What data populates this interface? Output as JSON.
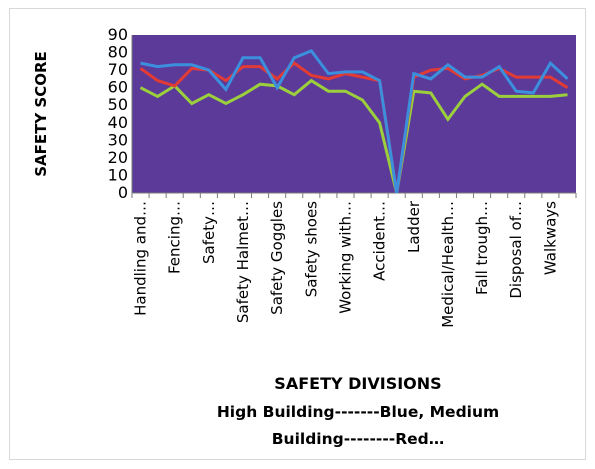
{
  "chart_data": {
    "type": "line",
    "ylabel": "SAFETY SCORE",
    "xlabel": "SAFETY DIVISIONS",
    "caption_lines": [
      "High Building-------Blue,  Medium",
      "Building--------Red…"
    ],
    "ylim": [
      0,
      90
    ],
    "yticks": [
      0,
      10,
      20,
      30,
      40,
      50,
      60,
      70,
      80,
      90
    ],
    "grid": false,
    "legend": "none",
    "plot_background": "#5b3a9a",
    "tick_labels_x": [
      "Handling and…",
      "Fencing…",
      "Safety…",
      "Safety  Halmet…",
      "Safety Goggles",
      "Safety shoes",
      "Working with…",
      "Accident…",
      "Ladder",
      "Medical/Health…",
      "Fall trough…",
      "Disposal of…",
      "Walkways"
    ],
    "x": [
      1,
      2,
      3,
      4,
      5,
      6,
      7,
      8,
      9,
      10,
      11,
      12,
      13,
      14,
      15,
      16,
      17,
      18,
      19,
      20,
      21,
      22,
      23,
      24,
      25,
      26
    ],
    "series": [
      {
        "color": "#3c8fdc",
        "values": [
          74,
          72,
          73,
          73,
          70,
          59,
          77,
          77,
          60,
          77,
          81,
          68,
          69,
          69,
          64,
          0,
          68,
          65,
          73,
          66,
          66,
          72,
          58,
          57,
          74,
          65
        ]
      },
      {
        "color": "#e23b35",
        "values": [
          71,
          64,
          61,
          71,
          70,
          64,
          72,
          72,
          65,
          74,
          67,
          65,
          68,
          66,
          64,
          0,
          66,
          70,
          71,
          65,
          67,
          71,
          66,
          66,
          66,
          60
        ]
      },
      {
        "color": "#9ccf3c",
        "values": [
          60,
          55,
          61,
          51,
          56,
          51,
          56,
          62,
          61,
          56,
          64,
          58,
          58,
          53,
          40,
          0,
          58,
          57,
          42,
          55,
          62,
          55,
          55,
          55,
          55,
          56
        ]
      }
    ]
  }
}
